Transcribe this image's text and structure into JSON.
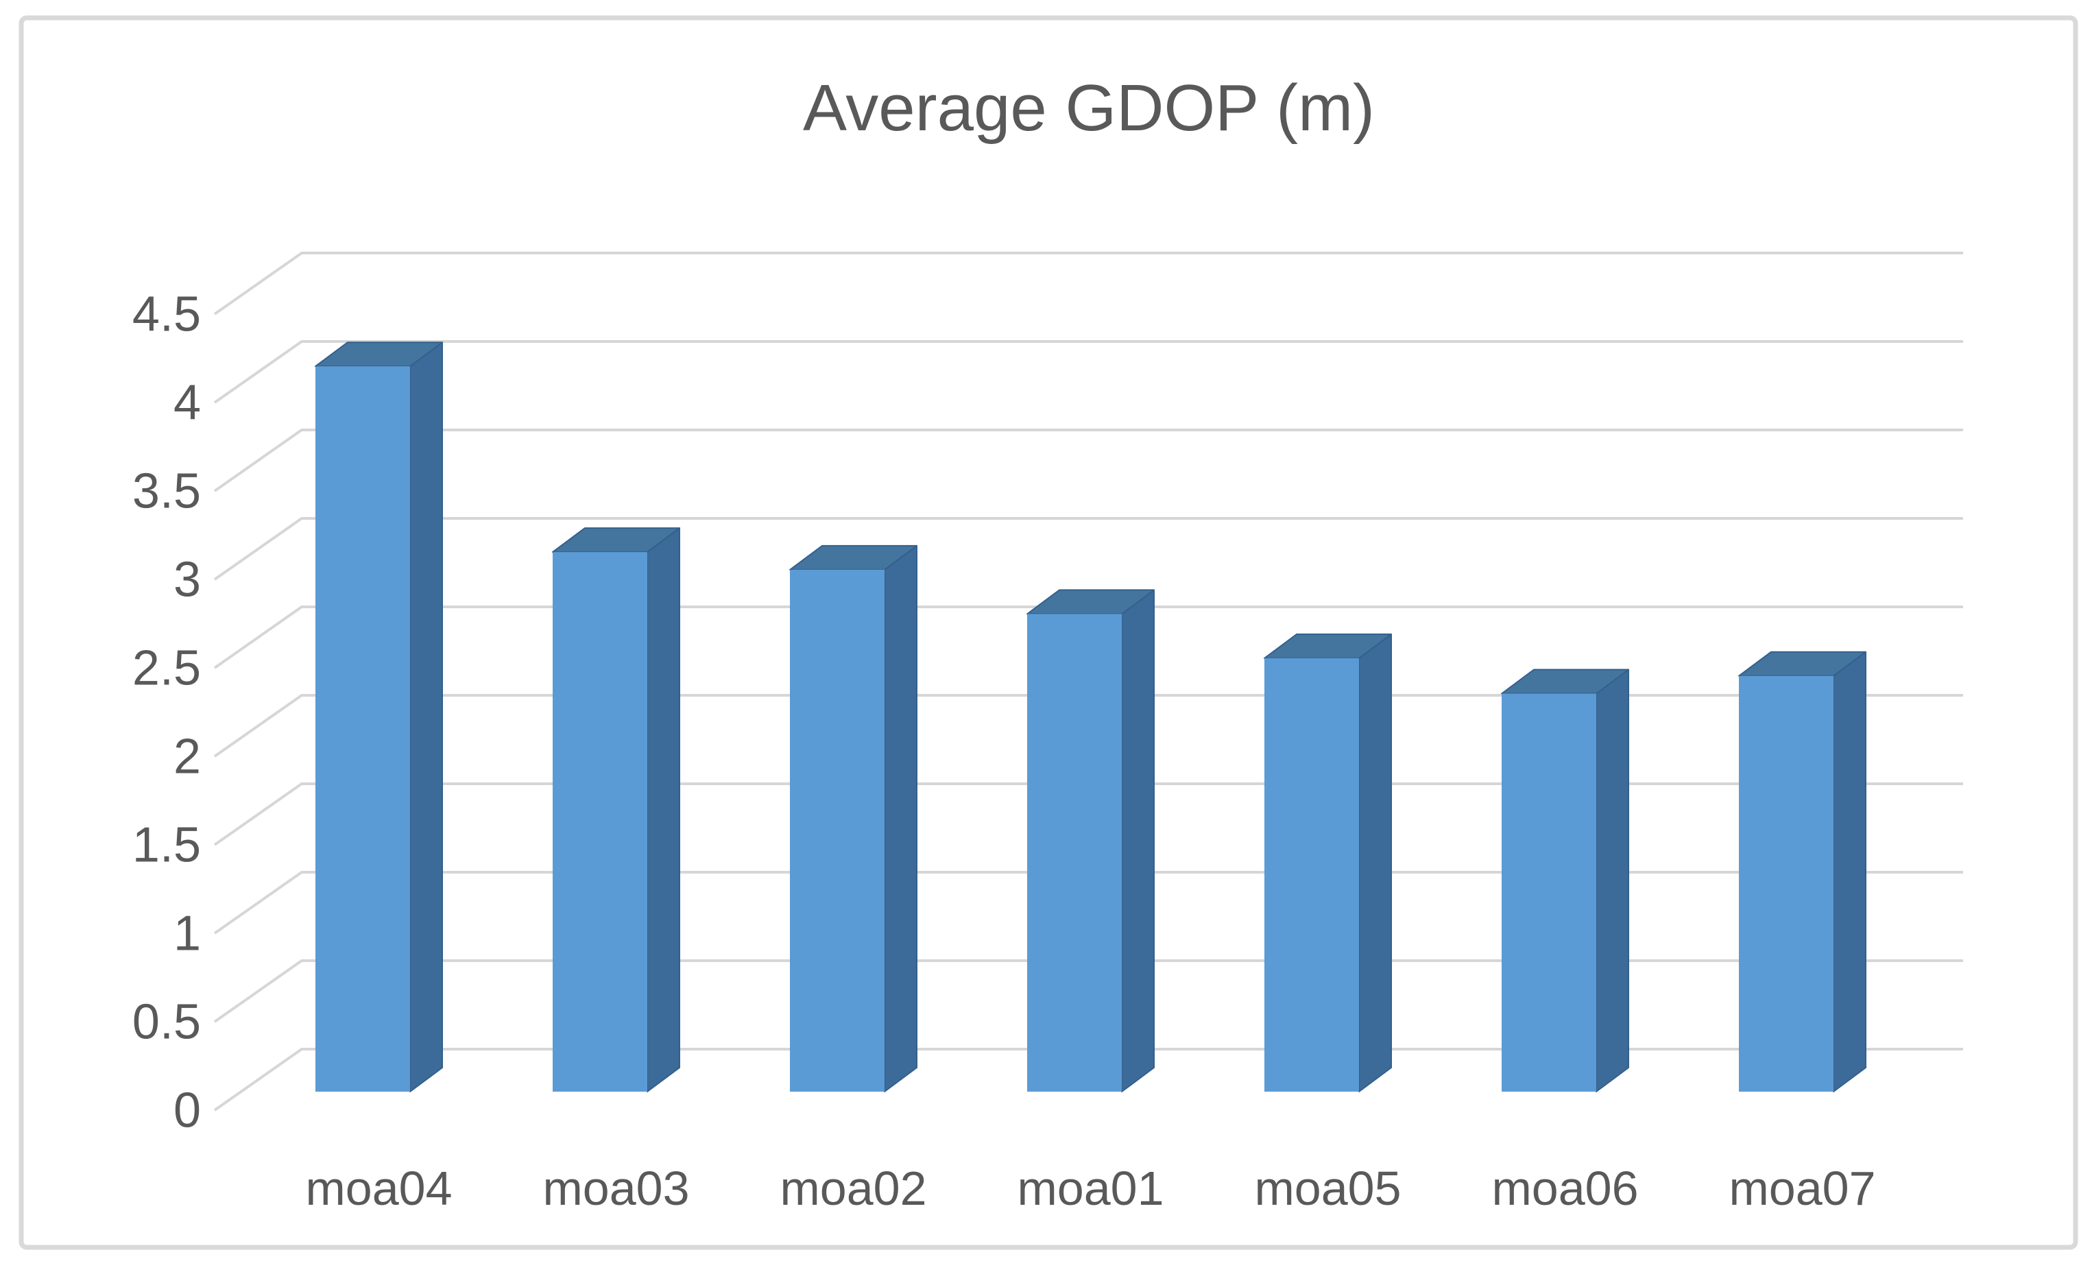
{
  "chart_data": {
    "type": "bar",
    "style": "3d-column",
    "title": "Average GDOP (m)",
    "categories": [
      "moa04",
      "moa03",
      "moa02",
      "moa01",
      "moa05",
      "moa06",
      "moa07"
    ],
    "values": [
      4.1,
      3.05,
      2.95,
      2.7,
      2.45,
      2.25,
      2.35
    ],
    "series_name": "Average GDOP (m)",
    "xlabel": "",
    "ylabel": "",
    "ylim": [
      0,
      4.5
    ],
    "ytick_step": 0.5,
    "ytick_labels": [
      "0",
      "0.5",
      "1",
      "1.5",
      "2",
      "2.5",
      "3",
      "3.5",
      "4",
      "4.5"
    ],
    "grid": "horizontal-backwall",
    "legend": false,
    "colors": {
      "bar_front": "#5B9BD5",
      "bar_top": "#44759F",
      "bar_side": "#3C6B99",
      "bar_edge": "#34608C",
      "gridline": "#D6D6D6",
      "axis_text": "#595959",
      "title_text": "#595959",
      "frame_border": "#D9D9D9",
      "background": "#FFFFFF"
    }
  }
}
